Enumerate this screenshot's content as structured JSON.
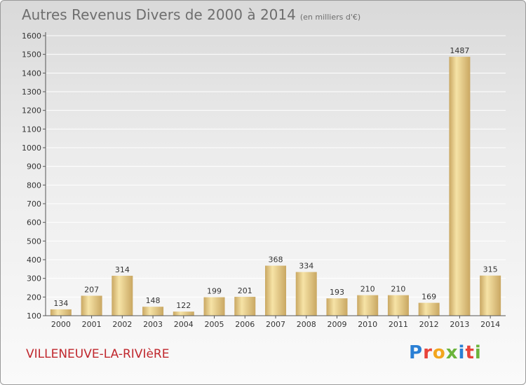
{
  "header": {
    "title": "Autres Revenus Divers de 2000 à 2014",
    "subtitle": "(en milliers d'€)"
  },
  "footer": {
    "commune": "VILLENEUVE-LA-RIVIèRE",
    "logo_text": "Proxiti",
    "logo_colors": [
      "#2a7fd4",
      "#e8433a",
      "#f2a51e",
      "#6bb43b",
      "#2a7fd4",
      "#e8433a",
      "#6bb43b"
    ]
  },
  "colors": {
    "bar_light": "#f6e3a6",
    "bar_dark": "#c9a762",
    "axis": "#555555",
    "grid": "#ffffff",
    "title": "#6e6e6e",
    "commune": "#c0272d"
  },
  "chart_data": {
    "type": "bar",
    "categories": [
      "2000",
      "2001",
      "2002",
      "2003",
      "2004",
      "2005",
      "2006",
      "2007",
      "2008",
      "2009",
      "2010",
      "2011",
      "2012",
      "2013",
      "2014"
    ],
    "values": [
      134,
      207,
      314,
      148,
      122,
      199,
      201,
      368,
      334,
      193,
      210,
      210,
      169,
      1487,
      315
    ],
    "data_labels": [
      "134",
      "207",
      "314",
      "148",
      "122",
      "199",
      "201",
      "368",
      "334",
      "193",
      "210",
      "210",
      "169",
      "1487",
      "315"
    ],
    "yticks": [
      "100",
      "200",
      "300",
      "400",
      "500",
      "600",
      "700",
      "800",
      "900",
      "1000",
      "1100",
      "1200",
      "1300",
      "1400",
      "1500",
      "1600"
    ],
    "ylim": [
      100,
      1600
    ],
    "grid": true,
    "xlabel": "",
    "ylabel": ""
  }
}
